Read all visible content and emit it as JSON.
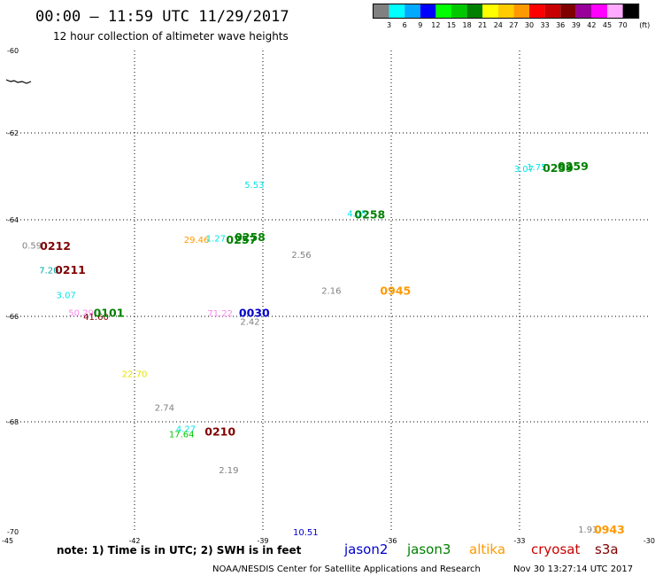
{
  "header": {
    "title": "00:00 — 11:59 UTC 11/29/2017",
    "subtitle": "12 hour collection of altimeter wave heights"
  },
  "scale": {
    "colors": [
      "#808080",
      "#00ffff",
      "#00aaff",
      "#0000ff",
      "#00ff00",
      "#00c800",
      "#008000",
      "#ffff00",
      "#ffcc00",
      "#ff9900",
      "#ff0000",
      "#c80000",
      "#800000",
      "#990099",
      "#ff00ff",
      "#ffaaff",
      "#000000"
    ],
    "labels": [
      "3",
      "6",
      "9",
      "12",
      "15",
      "18",
      "21",
      "24",
      "27",
      "30",
      "33",
      "36",
      "39",
      "42",
      "45",
      "70"
    ],
    "unit": "(ft)"
  },
  "map": {
    "lon_range": [
      -45,
      -30
    ],
    "lat_range": [
      -70,
      -60
    ],
    "lon_ticks": [
      "-45",
      "-42",
      "-39",
      "-36",
      "-33",
      "-30"
    ],
    "lat_ticks": [
      "-60",
      "-62",
      "-64",
      "-66",
      "-68",
      "-70"
    ],
    "grid": "dotted"
  },
  "observations": [
    {
      "text": "5.53",
      "lon": -39.2,
      "lat": -63.18,
      "color": "#00e5e5"
    },
    {
      "text": "4.55",
      "lon": -36.8,
      "lat": -63.85,
      "color": "#00e5e5"
    },
    {
      "text": "3.07",
      "lon": -32.9,
      "lat": -62.82,
      "color": "#00e5e5"
    },
    {
      "text": "1.75",
      "lon": -32.6,
      "lat": -62.78,
      "color": "#00e5e5"
    },
    {
      "text": "29.46",
      "lon": -40.55,
      "lat": -64.4,
      "color": "#ff9900"
    },
    {
      "text": "1.27",
      "lon": -40.1,
      "lat": -64.38,
      "color": "#00e5e5"
    },
    {
      "text": "2.56",
      "lon": -38.1,
      "lat": -64.72,
      "color": "#808080"
    },
    {
      "text": "0.59",
      "lon": -44.4,
      "lat": -64.52,
      "color": "#808080"
    },
    {
      "text": "7.20",
      "lon": -44.0,
      "lat": -65.04,
      "color": "#00aaaa"
    },
    {
      "text": "3.07",
      "lon": -43.6,
      "lat": -65.55,
      "color": "#00e5e5"
    },
    {
      "text": "2.16",
      "lon": -37.4,
      "lat": -65.46,
      "color": "#808080"
    },
    {
      "text": "50.29",
      "lon": -43.25,
      "lat": -65.92,
      "color": "#ff88ee"
    },
    {
      "text": "41.60",
      "lon": -42.9,
      "lat": -66.0,
      "color": "#800000"
    },
    {
      "text": "71.22",
      "lon": -40.0,
      "lat": -65.93,
      "color": "#ff88ee"
    },
    {
      "text": "2.42",
      "lon": -39.3,
      "lat": -66.09,
      "color": "#808080"
    },
    {
      "text": "22.70",
      "lon": -42.0,
      "lat": -67.08,
      "color": "#e5e500"
    },
    {
      "text": "2.74",
      "lon": -41.3,
      "lat": -67.72,
      "color": "#808080"
    },
    {
      "text": "4.27",
      "lon": -40.8,
      "lat": -68.12,
      "color": "#00e5e5"
    },
    {
      "text": "17.64",
      "lon": -40.9,
      "lat": -68.22,
      "color": "#00c800"
    },
    {
      "text": "2.19",
      "lon": -39.8,
      "lat": -68.87,
      "color": "#808080"
    },
    {
      "text": "10.51",
      "lon": -38.0,
      "lat": -70.0,
      "color": "#0000cc"
    },
    {
      "text": "1.93",
      "lon": -31.4,
      "lat": -69.95,
      "color": "#808080"
    }
  ],
  "passes": [
    {
      "text": "0259",
      "lon": -32.1,
      "lat": -62.8,
      "color": "#008000"
    },
    {
      "text": "0259",
      "lon": -31.75,
      "lat": -62.75,
      "color": "#008000"
    },
    {
      "text": "0258",
      "lon": -36.5,
      "lat": -63.87,
      "color": "#008000"
    },
    {
      "text": "0257",
      "lon": -39.5,
      "lat": -64.4,
      "color": "#008000"
    },
    {
      "text": "0258",
      "lon": -39.3,
      "lat": -64.35,
      "color": "#008000"
    },
    {
      "text": "0212",
      "lon": -43.85,
      "lat": -64.53,
      "color": "#800000"
    },
    {
      "text": "0211",
      "lon": -43.5,
      "lat": -65.03,
      "color": "#800000"
    },
    {
      "text": "0945",
      "lon": -35.9,
      "lat": -65.46,
      "color": "#ff9900"
    },
    {
      "text": "0101",
      "lon": -42.6,
      "lat": -65.92,
      "color": "#008000"
    },
    {
      "text": "0030",
      "lon": -39.2,
      "lat": -65.92,
      "color": "#0000cc"
    },
    {
      "text": "0210",
      "lon": -40.0,
      "lat": -68.17,
      "color": "#800000"
    },
    {
      "text": "0943",
      "lon": -30.9,
      "lat": -69.95,
      "color": "#ff9900"
    }
  ],
  "note": "note: 1) Time is in UTC; 2) SWH is in feet",
  "satellites": [
    {
      "name": "jason2",
      "color": "#0000cc"
    },
    {
      "name": "jason3",
      "color": "#008000"
    },
    {
      "name": "altika",
      "color": "#ff9900"
    },
    {
      "name": "cryosat",
      "color": "#cc0000"
    },
    {
      "name": "s3a",
      "color": "#800000"
    }
  ],
  "footer": {
    "credit": "NOAA/NESDIS Center for Satellite Applications and Research",
    "timestamp": "Nov 30 13:27:14 UTC 2017"
  },
  "coastline_icon": "coastline-fragment-icon"
}
